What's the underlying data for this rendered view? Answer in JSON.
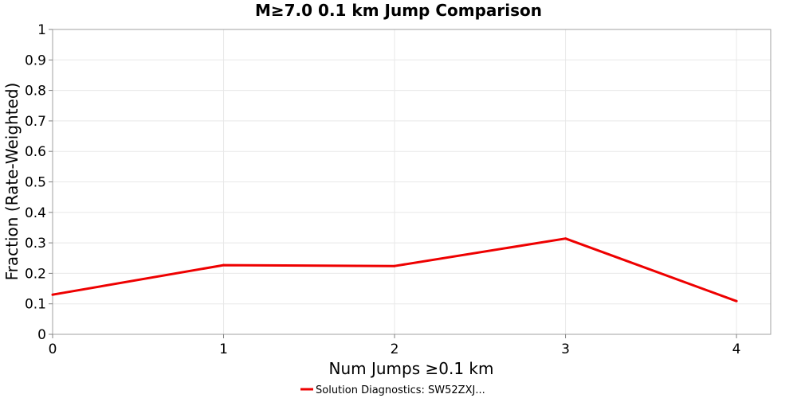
{
  "chart_data": {
    "type": "line",
    "title": "M≥7.0 0.1 km Jump Comparison",
    "xlabel": "Num Jumps ≥0.1 km",
    "ylabel": "Fraction (Rate-Weighted)",
    "xlim": [
      0,
      4.2
    ],
    "ylim": [
      0,
      1
    ],
    "x_ticks": [
      "0",
      "1",
      "2",
      "3",
      "4"
    ],
    "y_ticks": [
      "0",
      "0.1",
      "0.2",
      "0.3",
      "0.4",
      "0.5",
      "0.6",
      "0.7",
      "0.8",
      "0.9",
      "1"
    ],
    "grid": true,
    "legend_position": "bottom",
    "series": [
      {
        "name": "Solution Diagnostics: SW52ZXJ...",
        "color": "#ee0000",
        "x": [
          0,
          1,
          2,
          3,
          4
        ],
        "y": [
          0.13,
          0.227,
          0.224,
          0.314,
          0.109
        ]
      }
    ]
  }
}
